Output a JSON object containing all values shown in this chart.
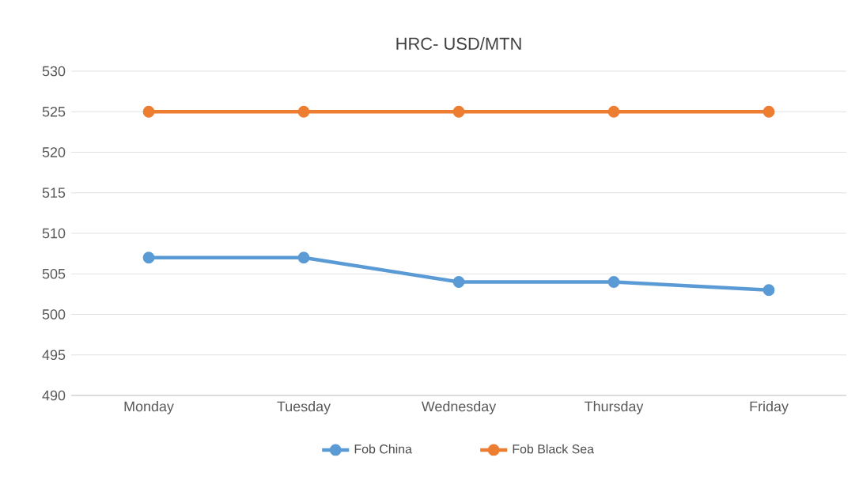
{
  "chart_data": {
    "type": "line",
    "title": "HRC- USD/MTN",
    "categories": [
      "Monday",
      "Tuesday",
      "Wednesday",
      "Thursday",
      "Friday"
    ],
    "series": [
      {
        "name": "Fob China",
        "color": "#5b9bd5",
        "values": [
          507,
          507,
          504,
          504,
          503
        ]
      },
      {
        "name": "Fob Black Sea",
        "color": "#ed7d31",
        "values": [
          525,
          525,
          525,
          525,
          525
        ]
      }
    ],
    "ylim": [
      490,
      530
    ],
    "yticks": [
      490,
      495,
      500,
      505,
      510,
      515,
      520,
      525,
      530
    ],
    "grid": "y",
    "legend": "bottom",
    "marker": "circle",
    "line_style": "solid"
  }
}
